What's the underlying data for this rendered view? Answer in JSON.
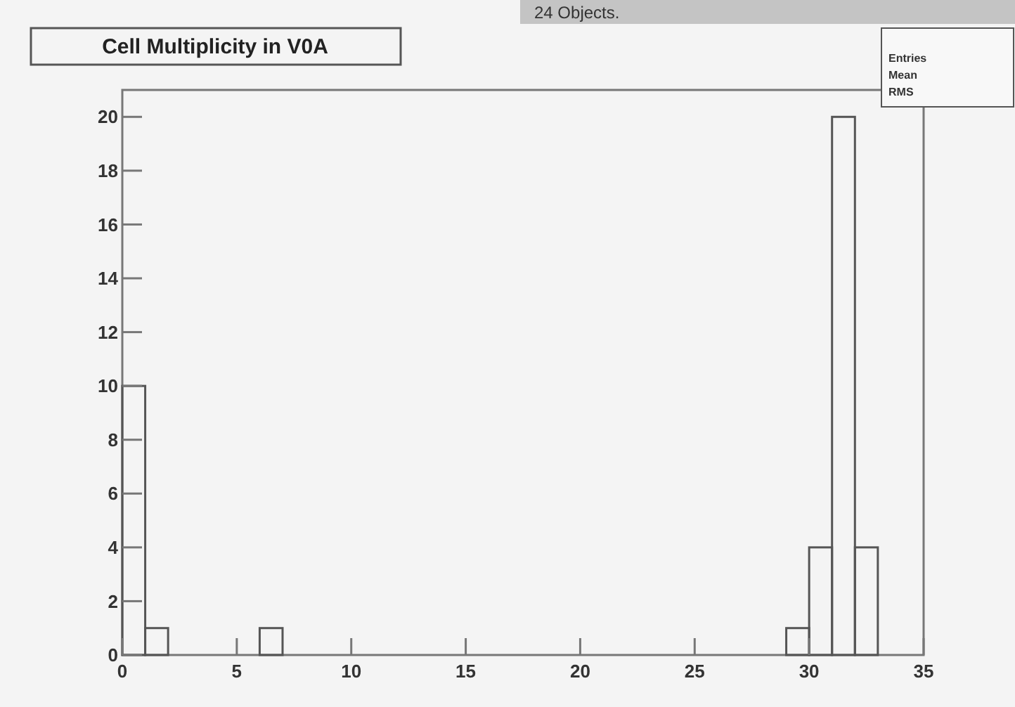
{
  "chart_data": {
    "type": "histogram",
    "title": "Cell Multiplicity in V0A",
    "bins": [
      0,
      1,
      2,
      3,
      4,
      5,
      6,
      7,
      8,
      9,
      10,
      11,
      12,
      13,
      14,
      15,
      16,
      17,
      18,
      19,
      20,
      21,
      22,
      23,
      24,
      25,
      26,
      27,
      28,
      29,
      30,
      31,
      32,
      33,
      34,
      35
    ],
    "values": [
      10,
      1,
      0,
      0,
      0,
      0,
      1,
      0,
      0,
      0,
      0,
      0,
      0,
      0,
      0,
      0,
      0,
      0,
      0,
      0,
      0,
      0,
      0,
      0,
      0,
      0,
      0,
      0,
      0,
      1,
      4,
      20,
      4,
      0,
      0
    ],
    "color": "#555555",
    "xlim": [
      0,
      35
    ],
    "xticks": [
      0,
      5,
      10,
      15,
      20,
      25,
      30,
      35
    ],
    "ylim": [
      0,
      21
    ],
    "yticks": [
      0,
      2,
      4,
      6,
      8,
      10,
      12,
      14,
      16,
      18,
      20
    ],
    "grid": false,
    "annotations": [
      "24 Objects.",
      "Entries",
      "Mean",
      "RMS"
    ]
  }
}
